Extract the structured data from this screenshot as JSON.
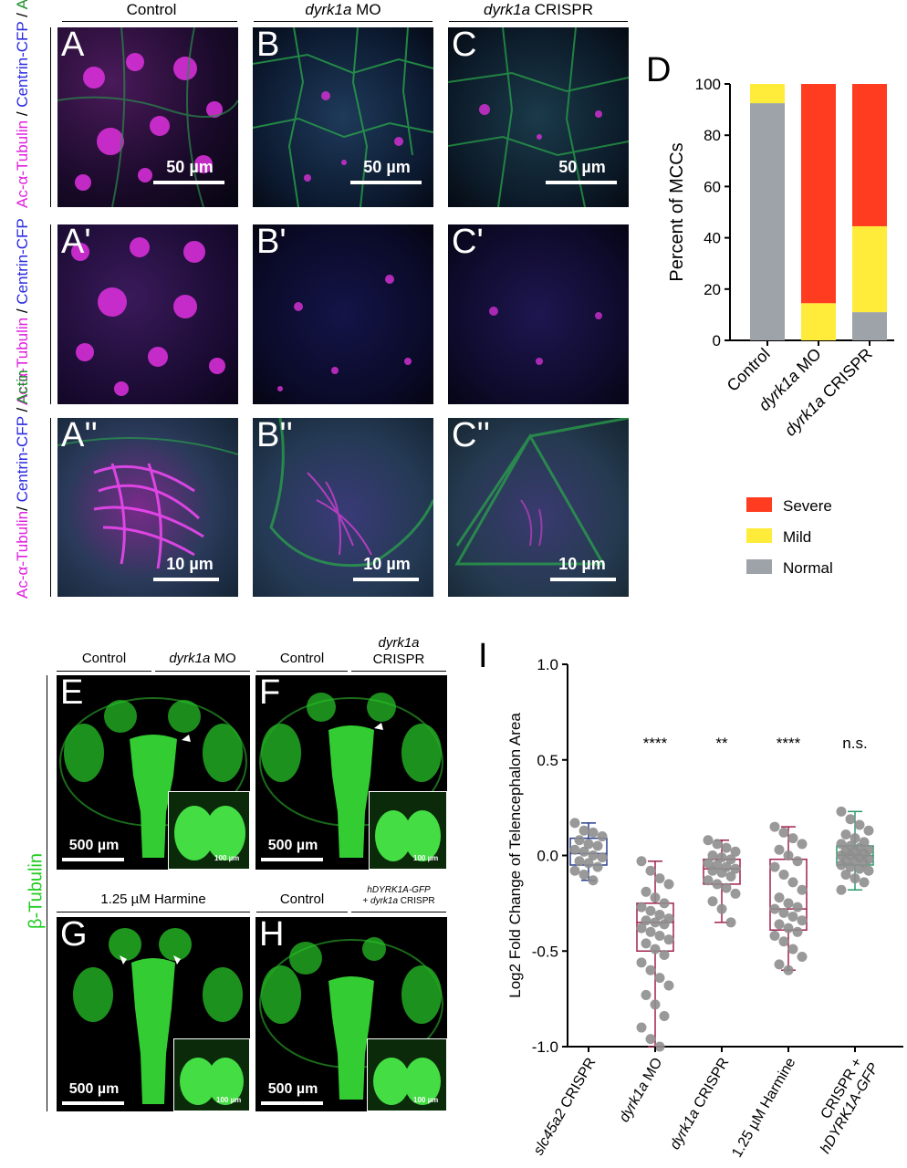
{
  "top_headers": {
    "control": "Control",
    "mo_italic": "dyrk1a",
    "mo_rest": " MO",
    "crispr_italic": "dyrk1a",
    "crispr_rest": " CRISPR"
  },
  "row_labels": {
    "row1": {
      "part1": "Ac-α-Tubulin",
      "sep1": " / ",
      "part2": "Centrin-CFP",
      "sep2": " / ",
      "part3": "Actin"
    },
    "row2": {
      "part1": "Ac-α-Tubulin",
      "sep1": " / ",
      "part2": "Centrin-CFP"
    },
    "row3": {
      "part1": "Ac-α-Tubulin",
      "sep1": "/ ",
      "part2": "Centrin-CFP",
      "sep2": " / ",
      "part3": "Actin"
    },
    "colors": {
      "magenta": "#e020e0",
      "blue": "#2a2ae0",
      "green": "#1a8f2a"
    }
  },
  "micro_panels": [
    {
      "letter": "A",
      "scale": "50 µm"
    },
    {
      "letter": "B",
      "scale": "50 µm"
    },
    {
      "letter": "C",
      "scale": "50 µm"
    },
    {
      "letter": "A'",
      "scale": ""
    },
    {
      "letter": "B'",
      "scale": ""
    },
    {
      "letter": "C'",
      "scale": ""
    },
    {
      "letter": "A''",
      "scale": "10 µm"
    },
    {
      "letter": "B''",
      "scale": "10 µm"
    },
    {
      "letter": "C''",
      "scale": "10 µm"
    }
  ],
  "panel_d": {
    "letter": "D",
    "chart_data": {
      "type": "bar",
      "stacked": true,
      "categories": [
        "Control",
        "dyrk1a MO",
        "dyrk1a CRISPR"
      ],
      "series": [
        {
          "name": "Normal",
          "color": "#9ea3aa",
          "values": [
            92.5,
            0,
            11
          ]
        },
        {
          "name": "Mild",
          "color": "#ffec3a",
          "values": [
            7.5,
            14.5,
            33.5
          ]
        },
        {
          "name": "Severe",
          "color": "#ff3c1f",
          "values": [
            0,
            85.5,
            55.5
          ]
        }
      ],
      "ylabel": "Percent of MCCs",
      "yticks": [
        0,
        20,
        40,
        60,
        80,
        100
      ],
      "ylim": [
        0,
        100
      ],
      "legend": [
        {
          "label": "Severe",
          "color": "#ff3c1f"
        },
        {
          "label": "Mild",
          "color": "#ffec3a"
        },
        {
          "label": "Normal",
          "color": "#9ea3aa"
        }
      ],
      "legend_position": "below"
    }
  },
  "brain_headers": {
    "e_left": "Control",
    "e_right_italic": "dyrk1a",
    "e_right_rest": " MO",
    "f_left": "Control",
    "f_right_italic": "dyrk1a",
    "f_right_rest": "CRISPR",
    "g": "1.25 µM Harmine",
    "h_left": "Control",
    "h_right_line1_italic": "hDYRK1A-GFP",
    "h_right_line2_rest": "+ ",
    "h_right_line2_italic": "dyrk1a",
    "h_right_line2_end": " CRISPR"
  },
  "brain_panels": [
    {
      "letter": "E",
      "scale": "500 µm",
      "inset_scale": "100 µm"
    },
    {
      "letter": "F",
      "scale": "500 µm",
      "inset_scale": "100 µm"
    },
    {
      "letter": "G",
      "scale": "500 µm",
      "inset_scale": "100 µm"
    },
    {
      "letter": "H",
      "scale": "500 µm",
      "inset_scale": "100 µm"
    }
  ],
  "beta_tubulin_label": "β-Tubulin",
  "beta_color": "#22cc22",
  "panel_i": {
    "letter": "I",
    "chart_data": {
      "type": "box",
      "ylabel": "Log2 Fold Change of Telencephalon Area",
      "ylim": [
        -1.0,
        1.0
      ],
      "yticks": [
        -1.0,
        -0.5,
        0.0,
        0.5,
        1.0
      ],
      "ytick_labels": [
        "-1.0",
        "-0.5",
        "0.0",
        "0.5",
        "1.0"
      ],
      "groups": [
        {
          "label_italic": "slc45a2",
          "label_rest": " CRISPR",
          "label2_italic": "",
          "label2_rest": "",
          "color": "#2b3f8f",
          "min": -0.13,
          "q1": -0.05,
          "median": 0.01,
          "q3": 0.09,
          "max": 0.17,
          "sig": "",
          "points": [
            0.17,
            0.13,
            0.12,
            0.1,
            0.08,
            0.06,
            0.05,
            0.03,
            0.02,
            0.0,
            -0.01,
            -0.03,
            -0.04,
            -0.06,
            -0.08,
            -0.1,
            -0.13
          ]
        },
        {
          "label_italic": "dyrk1a",
          "label_rest": " MO",
          "label2_italic": "",
          "label2_rest": "",
          "color": "#a02050",
          "min": -1.0,
          "q1": -0.5,
          "median": -0.35,
          "q3": -0.25,
          "max": -0.03,
          "sig": "****",
          "points": [
            -0.03,
            -0.08,
            -0.12,
            -0.15,
            -0.19,
            -0.22,
            -0.25,
            -0.27,
            -0.29,
            -0.31,
            -0.33,
            -0.34,
            -0.35,
            -0.36,
            -0.38,
            -0.4,
            -0.42,
            -0.44,
            -0.46,
            -0.49,
            -0.52,
            -0.56,
            -0.6,
            -0.64,
            -0.68,
            -0.73,
            -0.78,
            -0.84,
            -0.9,
            -0.96,
            -1.0
          ]
        },
        {
          "label_italic": "dyrk1a",
          "label_rest": " CRISPR",
          "label2_italic": "",
          "label2_rest": "",
          "color": "#a02050",
          "min": -0.35,
          "q1": -0.15,
          "median": -0.07,
          "q3": -0.02,
          "max": 0.08,
          "sig": "**",
          "points": [
            0.08,
            0.06,
            0.04,
            0.02,
            0.0,
            -0.01,
            -0.02,
            -0.04,
            -0.05,
            -0.06,
            -0.07,
            -0.08,
            -0.09,
            -0.11,
            -0.13,
            -0.15,
            -0.17,
            -0.2,
            -0.24,
            -0.28,
            -0.35
          ]
        },
        {
          "label_italic": "",
          "label_rest": "1.25 µM Harmine",
          "label2_italic": "",
          "label2_rest": "",
          "color": "#a02050",
          "min": -0.6,
          "q1": -0.39,
          "median": -0.28,
          "q3": -0.02,
          "max": 0.15,
          "sig": "****",
          "points": [
            0.15,
            0.12,
            0.09,
            0.06,
            0.03,
            0.0,
            -0.03,
            -0.06,
            -0.1,
            -0.14,
            -0.18,
            -0.22,
            -0.25,
            -0.27,
            -0.28,
            -0.3,
            -0.32,
            -0.34,
            -0.36,
            -0.38,
            -0.4,
            -0.42,
            -0.45,
            -0.49,
            -0.53,
            -0.57,
            -0.6
          ]
        },
        {
          "label_italic": "",
          "label_rest": "CRISPR +",
          "label2_italic": "hDYRK1A-GFP",
          "label2_rest": "",
          "color": "#2a9a6a",
          "min": -0.18,
          "q1": -0.05,
          "median": 0.0,
          "q3": 0.05,
          "max": 0.23,
          "sig": "n.s.",
          "points": [
            0.23,
            0.19,
            0.16,
            0.13,
            0.11,
            0.09,
            0.07,
            0.06,
            0.05,
            0.04,
            0.03,
            0.02,
            0.02,
            0.01,
            0.0,
            0.0,
            -0.01,
            -0.02,
            -0.03,
            -0.03,
            -0.04,
            -0.05,
            -0.06,
            -0.07,
            -0.08,
            -0.1,
            -0.12,
            -0.14,
            -0.18
          ]
        }
      ]
    }
  }
}
